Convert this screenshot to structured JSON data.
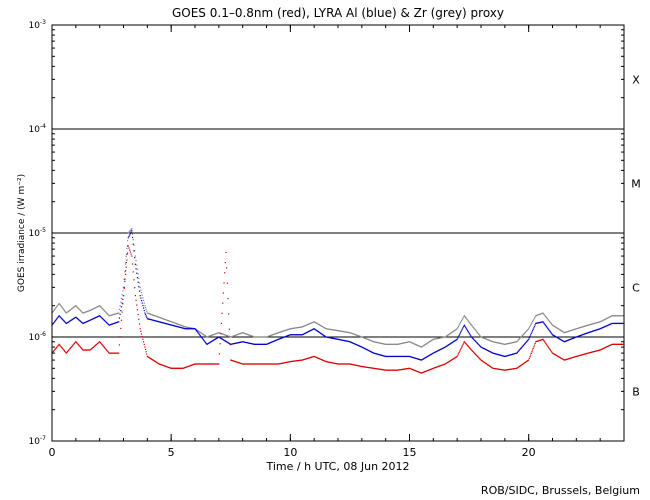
{
  "chart_data": {
    "type": "scatter",
    "title": "GOES 0.1–0.8nm (red), LYRA Al (blue) & Zr (grey) proxy",
    "xlabel": "Time / h UTC, 08 Jun 2012",
    "ylabel": "GOES irradiance / (W m⁻²)",
    "xlim": [
      0,
      24
    ],
    "ylim": [
      1e-07,
      0.001
    ],
    "yscale": "log",
    "x_ticks": [
      0,
      5,
      10,
      15,
      20
    ],
    "x_tick_labels": [
      "0",
      "5",
      "10",
      "15",
      "20"
    ],
    "y_ticks": [
      1e-07,
      1e-06,
      1e-05,
      0.0001,
      0.001
    ],
    "y_tick_labels": [
      {
        "base": "10",
        "exp": "-7"
      },
      {
        "base": "10",
        "exp": "-6"
      },
      {
        "base": "10",
        "exp": "-5"
      },
      {
        "base": "10",
        "exp": "-4"
      },
      {
        "base": "10",
        "exp": "-3"
      }
    ],
    "flare_class_lines": [
      1e-06,
      1e-05,
      0.0001
    ],
    "flare_classes": [
      {
        "label": "X",
        "y": 0.0003
      },
      {
        "label": "M",
        "y": 3e-05
      },
      {
        "label": "C",
        "y": 3e-06
      },
      {
        "label": "B",
        "y": 3e-07
      }
    ],
    "series": [
      {
        "color": "#888888",
        "x": [
          0,
          0.3,
          0.6,
          1.0,
          1.3,
          1.6,
          2.0,
          2.4,
          2.8,
          3.0,
          3.2,
          3.35,
          3.5,
          3.7,
          3.9,
          4.0,
          5.6,
          6.0,
          6.5,
          7.0,
          7.5,
          8.0,
          8.5,
          9.0,
          9.5,
          10.0,
          10.5,
          11.0,
          11.5,
          12.0,
          12.5,
          13.0,
          13.5,
          14.0,
          14.5,
          15.0,
          15.5,
          16.0,
          16.5,
          17.0,
          17.3,
          17.6,
          18.0,
          18.5,
          19.0,
          19.5,
          20.0,
          20.3,
          20.6,
          21.0,
          21.5,
          22.0,
          22.5,
          23.0,
          23.5,
          24.0
        ],
        "values": [
          1.7e-06,
          2.1e-06,
          1.7e-06,
          2e-06,
          1.7e-06,
          1.8e-06,
          2e-06,
          1.6e-06,
          1.7e-06,
          3e-06,
          1e-05,
          1.1e-05,
          6e-06,
          3e-06,
          2e-06,
          1.7e-06,
          1.25e-06,
          1.2e-06,
          1e-06,
          1.1e-06,
          1e-06,
          1.1e-06,
          1e-06,
          1e-06,
          1.1e-06,
          1.2e-06,
          1.25e-06,
          1.4e-06,
          1.2e-06,
          1.15e-06,
          1.1e-06,
          1e-06,
          9e-07,
          8.5e-07,
          8.5e-07,
          9e-07,
          8e-07,
          9.5e-07,
          1e-06,
          1.2e-06,
          1.6e-06,
          1.3e-06,
          1e-06,
          9e-07,
          8.5e-07,
          9e-07,
          1.2e-06,
          1.6e-06,
          1.7e-06,
          1.3e-06,
          1.1e-06,
          1.2e-06,
          1.3e-06,
          1.4e-06,
          1.6e-06,
          1.6e-06
        ]
      },
      {
        "color": "#0000cc",
        "x": [
          0,
          0.3,
          0.6,
          1.0,
          1.3,
          1.6,
          2.0,
          2.4,
          2.8,
          3.0,
          3.2,
          3.35,
          3.5,
          3.7,
          3.9,
          4.0,
          5.6,
          6.0,
          6.5,
          7.0,
          7.5,
          8.0,
          8.5,
          9.0,
          9.5,
          10.0,
          10.5,
          11.0,
          11.5,
          12.0,
          12.5,
          13.0,
          13.5,
          14.0,
          14.5,
          15.0,
          15.5,
          16.0,
          16.5,
          17.0,
          17.3,
          17.6,
          18.0,
          18.5,
          19.0,
          19.5,
          20.0,
          20.3,
          20.6,
          21.0,
          21.5,
          22.0,
          22.5,
          23.0,
          23.5,
          24.0
        ],
        "values": [
          1.3e-06,
          1.6e-06,
          1.35e-06,
          1.55e-06,
          1.35e-06,
          1.45e-06,
          1.6e-06,
          1.3e-06,
          1.4e-06,
          2.5e-06,
          9e-06,
          1.05e-05,
          5e-06,
          2.5e-06,
          1.7e-06,
          1.5e-06,
          1.2e-06,
          1.2e-06,
          8.5e-07,
          1e-06,
          8.5e-07,
          9e-07,
          8.5e-07,
          8.5e-07,
          9.5e-07,
          1.05e-06,
          1.05e-06,
          1.2e-06,
          1e-06,
          9.5e-07,
          9e-07,
          8e-07,
          7e-07,
          6.5e-07,
          6.5e-07,
          6.5e-07,
          6e-07,
          7e-07,
          8e-07,
          9.5e-07,
          1.3e-06,
          1e-06,
          8e-07,
          7e-07,
          6.5e-07,
          7e-07,
          9.5e-07,
          1.35e-06,
          1.4e-06,
          1.05e-06,
          9e-07,
          1e-06,
          1.1e-06,
          1.2e-06,
          1.35e-06,
          1.35e-06
        ]
      },
      {
        "color": "#dd0000",
        "x": [
          0,
          0.3,
          0.6,
          1.0,
          1.3,
          1.6,
          2.0,
          2.4,
          2.8,
          3.0,
          3.2,
          3.35,
          3.5,
          3.7,
          3.9,
          4.0,
          4.5,
          5.0,
          5.5,
          6.0,
          6.5,
          7.0,
          7.3,
          7.5,
          8.0,
          8.5,
          9.0,
          9.5,
          10.0,
          10.5,
          11.0,
          11.5,
          12.0,
          12.5,
          13.0,
          13.5,
          14.0,
          14.5,
          15.0,
          15.5,
          16.0,
          16.5,
          17.0,
          17.3,
          17.6,
          18.0,
          18.5,
          19.0,
          19.5,
          20.0,
          20.3,
          20.6,
          21.0,
          21.5,
          22.0,
          22.5,
          23.0,
          23.5,
          24.0
        ],
        "values": [
          7e-07,
          8.5e-07,
          7e-07,
          9e-07,
          7.5e-07,
          7.5e-07,
          9e-07,
          7e-07,
          7e-07,
          2.5e-06,
          7.5e-06,
          6e-06,
          2.5e-06,
          1.2e-06,
          8e-07,
          6.5e-07,
          5.5e-07,
          5e-07,
          5e-07,
          5.5e-07,
          5.5e-07,
          5.5e-07,
          6.5e-06,
          6e-07,
          5.5e-07,
          5.5e-07,
          5.5e-07,
          5.5e-07,
          5.8e-07,
          6e-07,
          6.5e-07,
          5.8e-07,
          5.5e-07,
          5.5e-07,
          5.2e-07,
          5e-07,
          4.8e-07,
          4.8e-07,
          5e-07,
          4.5e-07,
          5e-07,
          5.5e-07,
          6.5e-07,
          9e-07,
          7.5e-07,
          6e-07,
          5e-07,
          4.8e-07,
          5e-07,
          6e-07,
          9e-07,
          9.5e-07,
          7e-07,
          6e-07,
          6.5e-07,
          7e-07,
          7.5e-07,
          8.5e-07,
          8.5e-07
        ]
      }
    ]
  },
  "credit": "ROB/SIDC, Brussels, Belgium"
}
